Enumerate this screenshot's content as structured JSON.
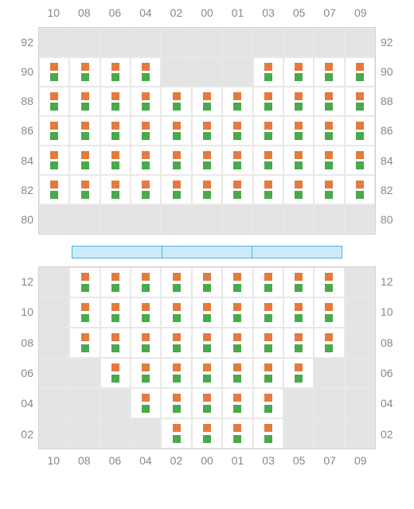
{
  "colors": {
    "seat_top": "#e47b3e",
    "seat_bot": "#49a94c",
    "empty_bg": "#e4e4e4",
    "seat_bg": "#ffffff",
    "grid_border": "#d0d0d0",
    "cell_border": "#e8e8e8",
    "label_color": "#888888",
    "stage_fill": "#cdeafd",
    "stage_border": "#4db0e8",
    "page_bg": "#ffffff"
  },
  "columns": [
    "10",
    "08",
    "06",
    "04",
    "02",
    "00",
    "01",
    "03",
    "05",
    "07",
    "09"
  ],
  "upper": {
    "rows": [
      "92",
      "90",
      "88",
      "86",
      "84",
      "82",
      "80"
    ],
    "grid": [
      [
        0,
        0,
        0,
        0,
        0,
        0,
        0,
        0,
        0,
        0,
        0
      ],
      [
        1,
        1,
        1,
        1,
        0,
        0,
        0,
        1,
        1,
        1,
        1
      ],
      [
        1,
        1,
        1,
        1,
        1,
        1,
        1,
        1,
        1,
        1,
        1
      ],
      [
        1,
        1,
        1,
        1,
        1,
        1,
        1,
        1,
        1,
        1,
        1
      ],
      [
        1,
        1,
        1,
        1,
        1,
        1,
        1,
        1,
        1,
        1,
        1
      ],
      [
        1,
        1,
        1,
        1,
        1,
        1,
        1,
        1,
        1,
        1,
        1
      ],
      [
        0,
        0,
        0,
        0,
        0,
        0,
        0,
        0,
        0,
        0,
        0
      ]
    ]
  },
  "lower": {
    "rows": [
      "12",
      "10",
      "08",
      "06",
      "04",
      "02"
    ],
    "grid": [
      [
        0,
        1,
        1,
        1,
        1,
        1,
        1,
        1,
        1,
        1,
        0
      ],
      [
        0,
        1,
        1,
        1,
        1,
        1,
        1,
        1,
        1,
        1,
        0
      ],
      [
        0,
        1,
        1,
        1,
        1,
        1,
        1,
        1,
        1,
        1,
        0
      ],
      [
        0,
        0,
        1,
        1,
        1,
        1,
        1,
        1,
        1,
        0,
        0
      ],
      [
        0,
        0,
        0,
        1,
        1,
        1,
        1,
        1,
        0,
        0,
        0
      ],
      [
        0,
        0,
        0,
        0,
        1,
        1,
        1,
        1,
        0,
        0,
        0
      ]
    ]
  },
  "stage_segments": 3,
  "layout": {
    "cell_height_upper": 37,
    "cell_height_lower": 38,
    "label_fontsize": 14
  }
}
